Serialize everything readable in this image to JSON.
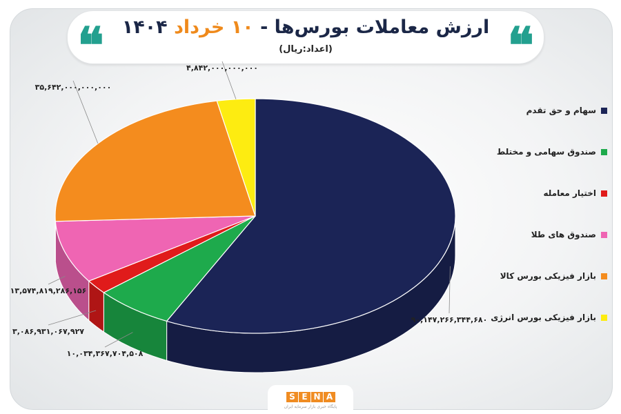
{
  "header": {
    "title_main": "ارزش معاملات بورس‌ها -",
    "title_date": "۱۰ خرداد",
    "title_year": "۱۴۰۴",
    "subtitle": "(اعداد:ریال)",
    "quote_glyph": "❝"
  },
  "footer": {
    "logo_letters": [
      "S",
      "E",
      "N",
      "A"
    ],
    "tagline": "پایگاه خبری بازار سرمایه ایران"
  },
  "colors": {
    "accent": "#ef8a1c",
    "title": "#1b2747",
    "quote": "#23a08f"
  },
  "chart_data": {
    "type": "pie",
    "style": "3d",
    "legend_position": "right",
    "categories": [
      "سهام و حق تقدم",
      "صندوق سهامی و مختلط",
      "اختیار معامله",
      "صندوق های طلا",
      "بازار فیزیکی بورس کالا",
      "بازار فیزیکی بورس انرژی"
    ],
    "values": [
      90147266344680,
      10034367704508,
      3086931067927,
      13574819286156,
      35642000000000,
      4842000000000
    ],
    "value_labels": [
      "۹۰,۱۴۷,۲۶۶,۳۴۴,۶۸۰",
      "۱۰,۰۳۴,۳۶۷,۷۰۴,۵۰۸",
      "۳,۰۸۶,۹۳۱,۰۶۷,۹۲۷",
      "۱۳,۵۷۴,۸۱۹,۲۸۶,۱۵۶",
      "۳۵,۶۴۲,۰۰۰,۰۰۰,۰۰۰",
      "۴,۸۴۲,۰۰۰,۰۰۰,۰۰۰"
    ],
    "colors": [
      "#1b2456",
      "#1eaa4c",
      "#e01b1b",
      "#ef65b3",
      "#f48c1e",
      "#fdec11"
    ]
  }
}
